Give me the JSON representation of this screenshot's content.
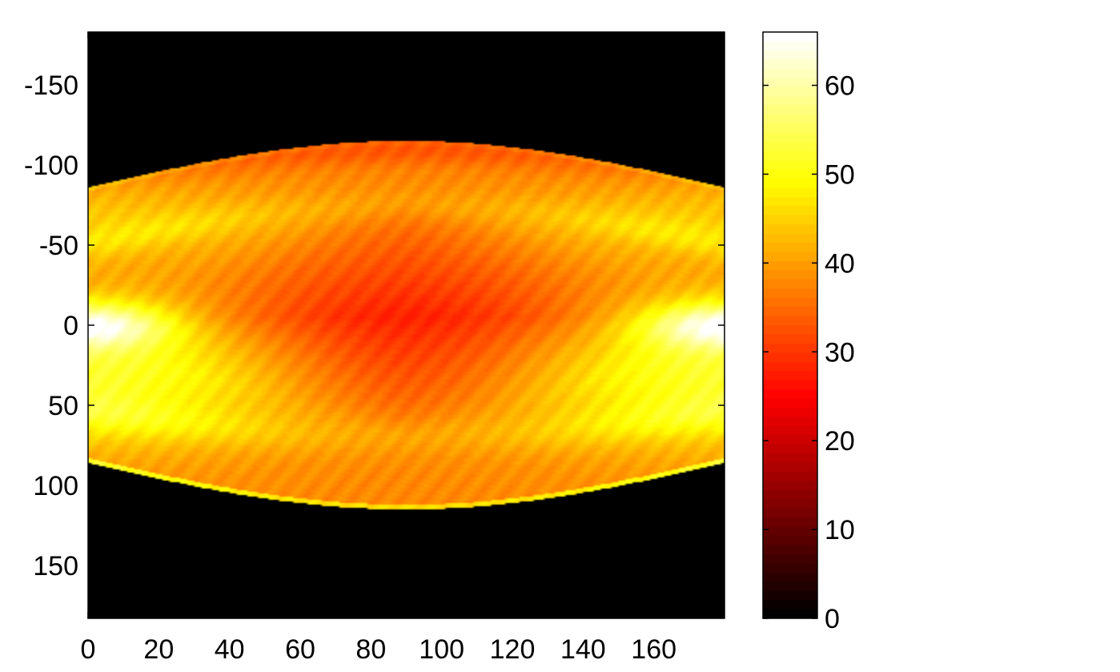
{
  "chart_data": {
    "type": "heatmap",
    "title": "",
    "xlabel": "",
    "ylabel": "",
    "xlim": [
      0,
      180
    ],
    "ylim": [
      -183,
      183
    ],
    "y_reversed": true,
    "x_ticks": [
      0,
      20,
      40,
      60,
      80,
      100,
      120,
      140,
      160
    ],
    "y_ticks": [
      -150,
      -100,
      -50,
      0,
      50,
      100,
      150
    ],
    "x_tick_labels": [
      "0",
      "20",
      "40",
      "60",
      "80",
      "100",
      "120",
      "140",
      "160"
    ],
    "y_tick_labels": [
      "-150",
      "-100",
      "-50",
      "0",
      "50",
      "100",
      "150"
    ],
    "colorbar": {
      "colormap": "hot",
      "range": [
        0,
        66
      ],
      "ticks": [
        0,
        10,
        20,
        30,
        40,
        50,
        60
      ],
      "tick_labels": [
        "0",
        "10",
        "20",
        "30",
        "40",
        "50",
        "60"
      ],
      "position": "right"
    },
    "grid": false,
    "description_values": {
      "support_half_width_at_0_and_180": 86,
      "support_half_width_at_90": 115,
      "background_value": 0,
      "interior_value_min": 26,
      "interior_value_max": 66,
      "peak_locations": [
        [
          0,
          0
        ],
        [
          180,
          0
        ]
      ]
    }
  }
}
